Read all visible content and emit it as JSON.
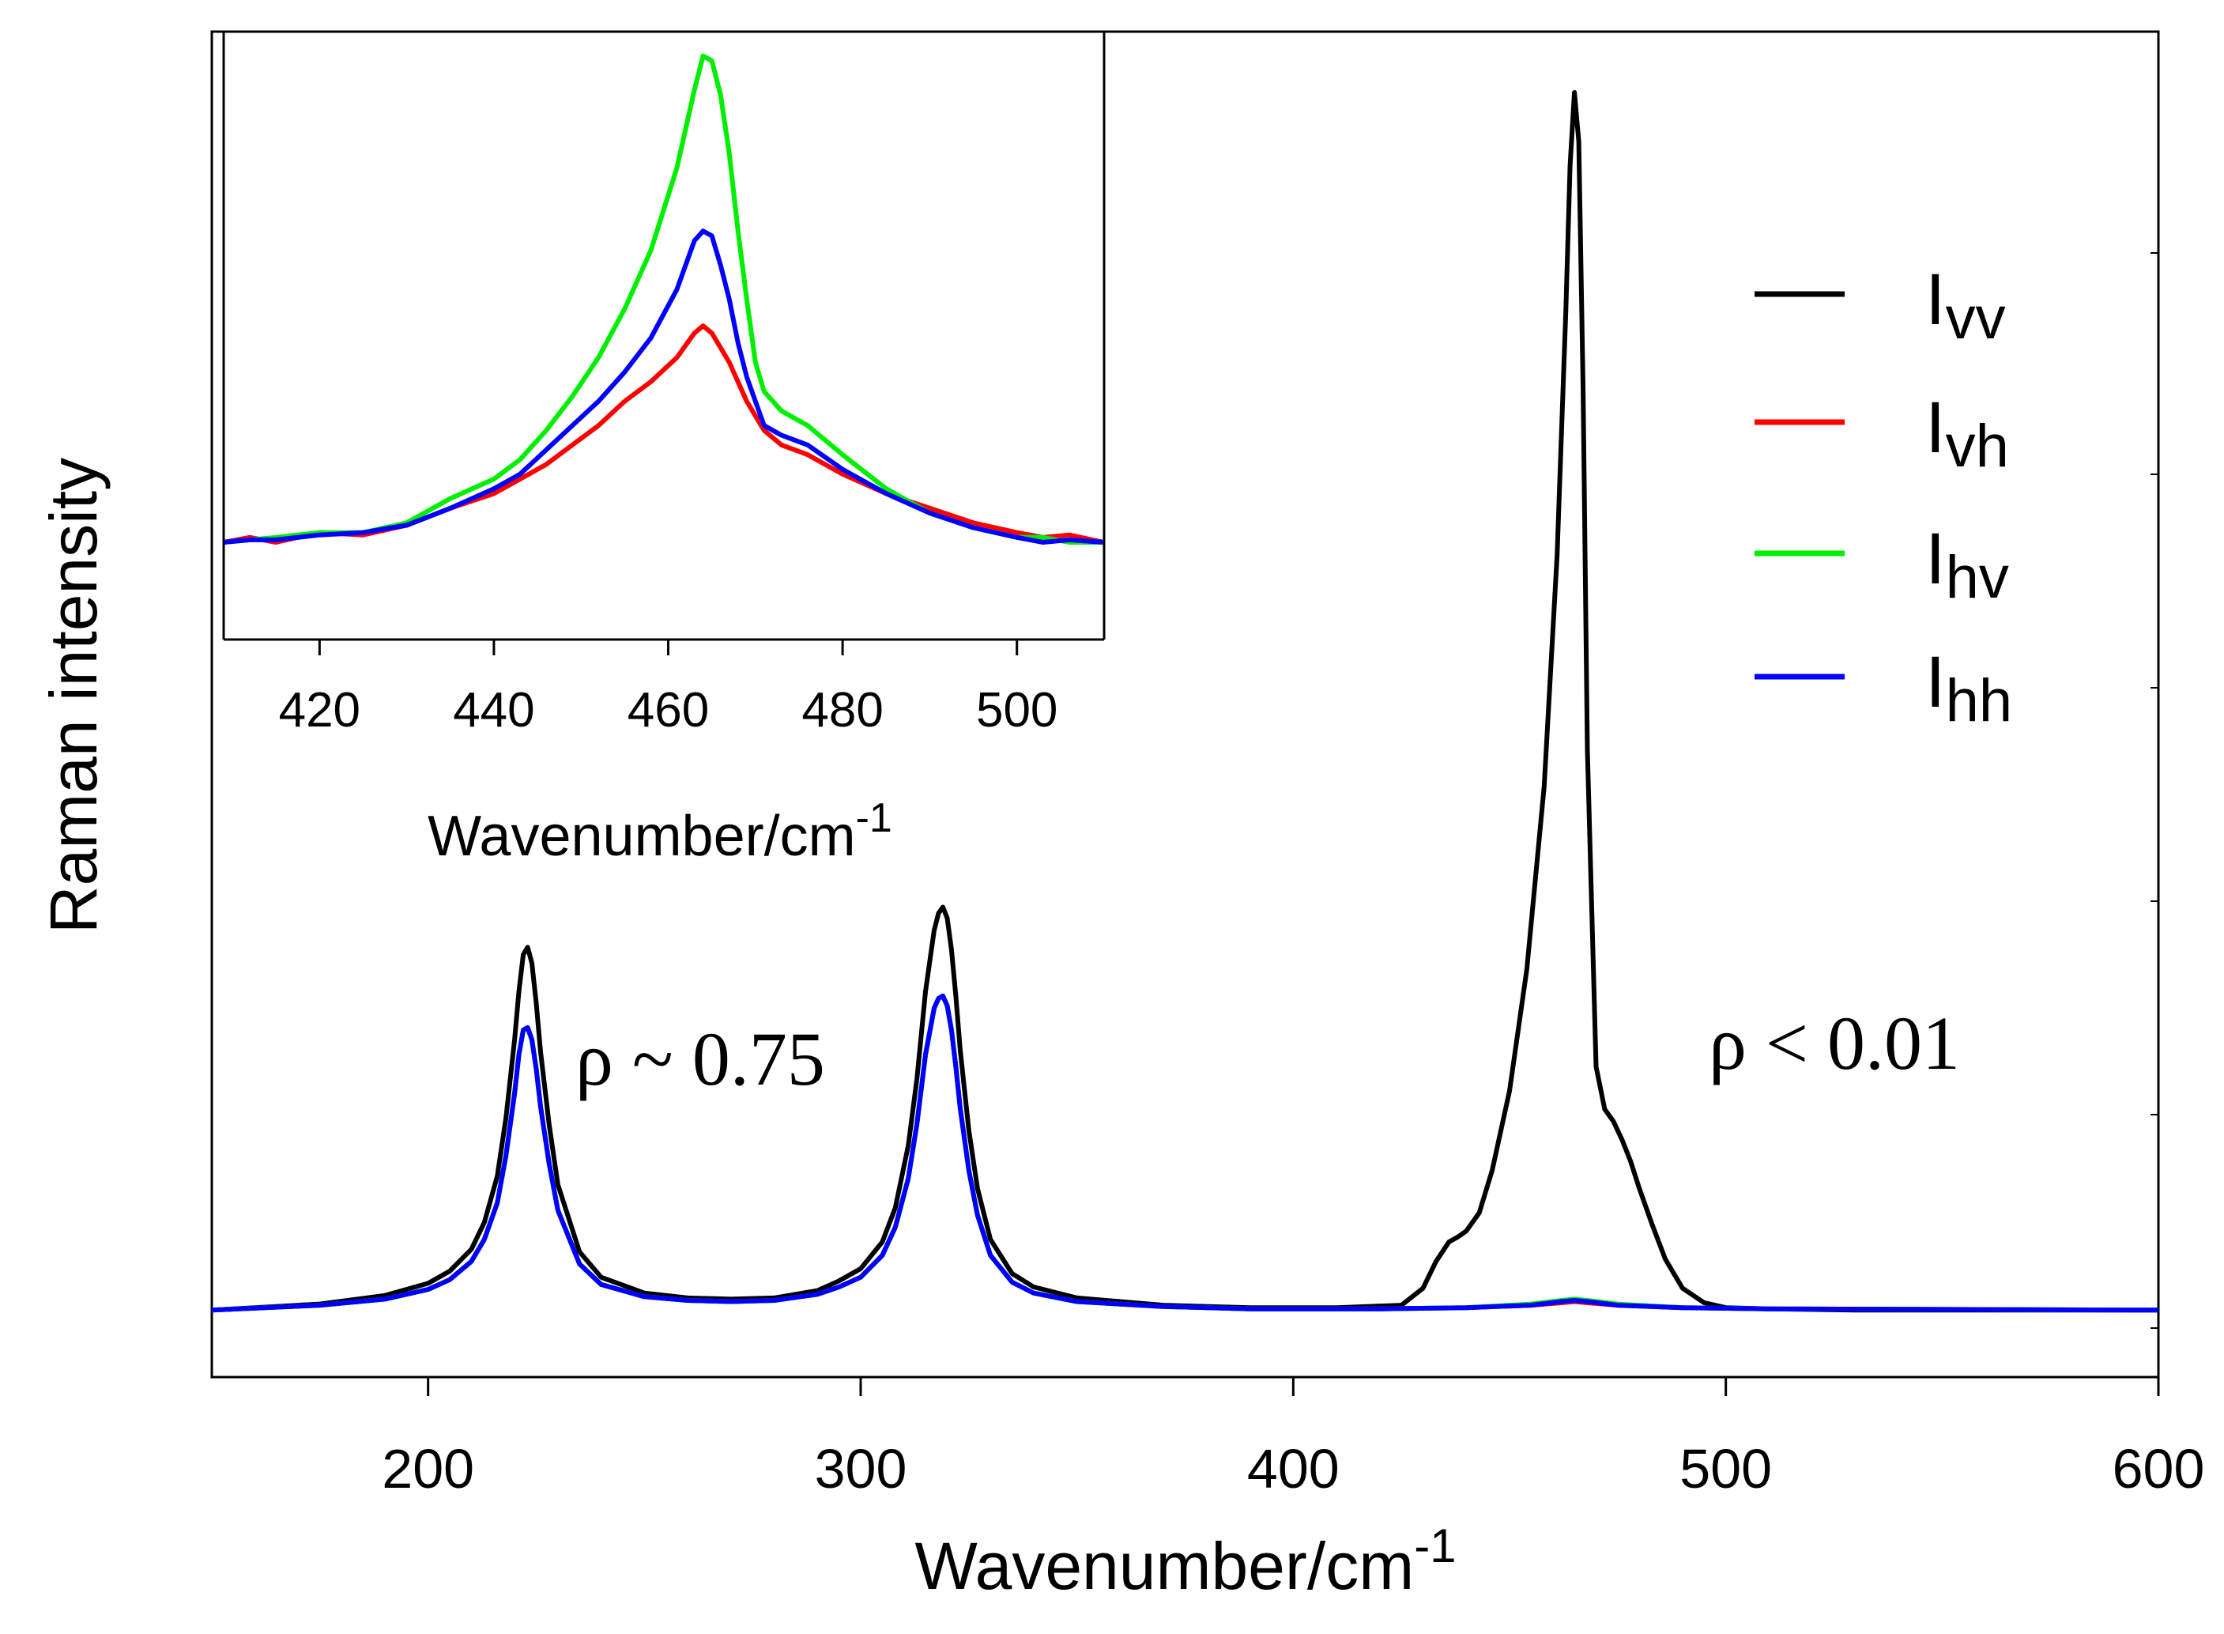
{
  "chart_data": [
    {
      "type": "line",
      "role": "main",
      "title": "",
      "xlabel": "Wavenumber/cm",
      "xlabel_superscript": "-1",
      "ylabel": "Raman intensity",
      "xlim": [
        150,
        600
      ],
      "ylim": [
        -0.055,
        1.05
      ],
      "xticks": [
        "200",
        "300",
        "400",
        "500",
        "600"
      ],
      "grid": false,
      "legend_position": "top-right",
      "series": [
        {
          "name": "vv",
          "color": "#000000",
          "x": [
            150,
            175,
            190,
            200,
            205,
            210,
            213,
            216,
            218,
            220,
            221,
            222,
            223,
            224,
            225,
            226,
            228,
            230,
            235,
            240,
            250,
            260,
            270,
            280,
            290,
            295,
            300,
            305,
            308,
            311,
            313,
            315,
            317,
            318,
            319,
            320,
            321,
            322,
            323,
            325,
            327,
            330,
            335,
            340,
            350,
            370,
            390,
            410,
            425,
            430,
            433,
            436,
            438,
            440,
            443,
            446,
            450,
            454,
            458,
            461,
            463,
            464,
            465,
            466,
            467,
            468,
            470,
            472,
            474,
            476,
            478,
            480,
            483,
            486,
            490,
            495,
            500,
            510,
            530,
            560,
            600
          ],
          "y": [
            0,
            0.005,
            0.012,
            0.022,
            0.032,
            0.05,
            0.072,
            0.11,
            0.158,
            0.222,
            0.262,
            0.292,
            0.298,
            0.285,
            0.252,
            0.212,
            0.152,
            0.103,
            0.048,
            0.027,
            0.014,
            0.01,
            0.009,
            0.01,
            0.016,
            0.024,
            0.034,
            0.056,
            0.084,
            0.135,
            0.19,
            0.262,
            0.312,
            0.326,
            0.331,
            0.322,
            0.296,
            0.258,
            0.214,
            0.148,
            0.1,
            0.058,
            0.03,
            0.019,
            0.01,
            0.004,
            0.002,
            0.002,
            0.004,
            0.018,
            0.04,
            0.056,
            0.06,
            0.065,
            0.08,
            0.115,
            0.18,
            0.28,
            0.43,
            0.62,
            0.82,
            0.94,
            1.0,
            0.96,
            0.76,
            0.46,
            0.2,
            0.165,
            0.155,
            0.14,
            0.122,
            0.1,
            0.07,
            0.042,
            0.018,
            0.006,
            0.002,
            0.001,
            0,
            0,
            0
          ]
        },
        {
          "name": "vh",
          "color": "#ff0000",
          "x": [
            150,
            175,
            190,
            200,
            205,
            210,
            213,
            216,
            218,
            220,
            221,
            222,
            223,
            224,
            225,
            226,
            228,
            230,
            235,
            240,
            250,
            260,
            270,
            280,
            290,
            295,
            300,
            305,
            308,
            311,
            313,
            315,
            317,
            318,
            319,
            320,
            321,
            322,
            323,
            325,
            327,
            330,
            335,
            340,
            350,
            370,
            390,
            420,
            440,
            455,
            462,
            465,
            468,
            475,
            490,
            510,
            600
          ],
          "y": [
            0,
            0.004,
            0.009,
            0.017,
            0.025,
            0.04,
            0.058,
            0.088,
            0.127,
            0.178,
            0.21,
            0.23,
            0.232,
            0.222,
            0.198,
            0.167,
            0.12,
            0.082,
            0.038,
            0.021,
            0.011,
            0.008,
            0.007,
            0.008,
            0.013,
            0.019,
            0.027,
            0.045,
            0.068,
            0.108,
            0.153,
            0.21,
            0.248,
            0.256,
            0.258,
            0.25,
            0.23,
            0.2,
            0.166,
            0.115,
            0.078,
            0.045,
            0.023,
            0.014,
            0.007,
            0.003,
            0.001,
            0.001,
            0.002,
            0.004,
            0.006,
            0.007,
            0.006,
            0.004,
            0.002,
            0.001,
            0
          ]
        },
        {
          "name": "hv",
          "color": "#00ee00",
          "x": [
            150,
            175,
            190,
            200,
            205,
            210,
            213,
            216,
            218,
            220,
            221,
            222,
            223,
            224,
            225,
            226,
            228,
            230,
            235,
            240,
            250,
            260,
            270,
            280,
            290,
            295,
            300,
            305,
            308,
            311,
            313,
            315,
            317,
            318,
            319,
            320,
            321,
            322,
            323,
            325,
            327,
            330,
            335,
            340,
            350,
            370,
            390,
            420,
            440,
            455,
            462,
            465,
            468,
            475,
            490,
            510,
            600
          ],
          "y": [
            0,
            0.004,
            0.009,
            0.017,
            0.025,
            0.04,
            0.058,
            0.088,
            0.127,
            0.178,
            0.21,
            0.23,
            0.232,
            0.222,
            0.198,
            0.167,
            0.12,
            0.082,
            0.038,
            0.021,
            0.011,
            0.008,
            0.007,
            0.008,
            0.013,
            0.019,
            0.027,
            0.045,
            0.068,
            0.108,
            0.153,
            0.21,
            0.248,
            0.256,
            0.258,
            0.25,
            0.23,
            0.2,
            0.166,
            0.115,
            0.078,
            0.045,
            0.023,
            0.014,
            0.007,
            0.003,
            0.001,
            0.001,
            0.002,
            0.005,
            0.008,
            0.009,
            0.008,
            0.005,
            0.002,
            0.001,
            0
          ]
        },
        {
          "name": "hh",
          "color": "#0000ff",
          "x": [
            150,
            175,
            190,
            200,
            205,
            210,
            213,
            216,
            218,
            220,
            221,
            222,
            223,
            224,
            225,
            226,
            228,
            230,
            235,
            240,
            250,
            260,
            270,
            280,
            290,
            295,
            300,
            305,
            308,
            311,
            313,
            315,
            317,
            318,
            319,
            320,
            321,
            322,
            323,
            325,
            327,
            330,
            335,
            340,
            350,
            370,
            390,
            420,
            440,
            455,
            462,
            465,
            468,
            475,
            490,
            510,
            600
          ],
          "y": [
            0,
            0.004,
            0.009,
            0.017,
            0.025,
            0.04,
            0.058,
            0.088,
            0.127,
            0.178,
            0.21,
            0.23,
            0.232,
            0.222,
            0.198,
            0.167,
            0.12,
            0.082,
            0.038,
            0.021,
            0.011,
            0.008,
            0.007,
            0.008,
            0.013,
            0.019,
            0.027,
            0.045,
            0.068,
            0.108,
            0.153,
            0.21,
            0.248,
            0.256,
            0.258,
            0.25,
            0.23,
            0.2,
            0.166,
            0.115,
            0.078,
            0.045,
            0.023,
            0.014,
            0.007,
            0.003,
            0.001,
            0.001,
            0.002,
            0.004,
            0.007,
            0.008,
            0.007,
            0.004,
            0.002,
            0.001,
            0
          ]
        }
      ],
      "annotations": [
        {
          "text": "ρ ~ 0.75",
          "x": 290,
          "y": 0.21
        },
        {
          "text": "ρ < 0.01",
          "x": 528,
          "y": 0.22
        }
      ]
    },
    {
      "type": "line",
      "role": "inset",
      "title": "",
      "xlabel": "Wavenumber/cm",
      "xlabel_superscript": "-1",
      "ylabel": "",
      "xlim": [
        409,
        510
      ],
      "ylim": [
        -0.2,
        1.05
      ],
      "xticks": [
        "420",
        "440",
        "460",
        "480",
        "500"
      ],
      "grid": false,
      "series": [
        {
          "name": "vh",
          "color": "#ff0000",
          "x": [
            409,
            412,
            415,
            420,
            425,
            430,
            435,
            440,
            443,
            446,
            449,
            452,
            455,
            458,
            461,
            463,
            464,
            465,
            467,
            469,
            471,
            473,
            476,
            480,
            485,
            490,
            495,
            500,
            503,
            506,
            510
          ],
          "y": [
            0.0,
            0.01,
            0.0,
            0.02,
            0.015,
            0.035,
            0.07,
            0.1,
            0.13,
            0.16,
            0.2,
            0.24,
            0.29,
            0.33,
            0.38,
            0.43,
            0.445,
            0.43,
            0.37,
            0.29,
            0.23,
            0.2,
            0.18,
            0.14,
            0.1,
            0.07,
            0.04,
            0.02,
            0.01,
            0.015,
            0.0
          ]
        },
        {
          "name": "hv",
          "color": "#00ee00",
          "x": [
            409,
            412,
            415,
            420,
            425,
            430,
            435,
            440,
            443,
            446,
            449,
            452,
            455,
            458,
            461,
            463,
            464,
            465,
            466,
            467,
            468,
            469,
            470,
            471,
            473,
            476,
            480,
            485,
            490,
            495,
            500,
            503,
            506,
            510
          ],
          "y": [
            0.0,
            0.005,
            0.01,
            0.02,
            0.02,
            0.04,
            0.09,
            0.13,
            0.17,
            0.23,
            0.3,
            0.38,
            0.48,
            0.6,
            0.77,
            0.93,
            1.0,
            0.99,
            0.92,
            0.8,
            0.64,
            0.5,
            0.37,
            0.31,
            0.27,
            0.24,
            0.18,
            0.11,
            0.06,
            0.03,
            0.01,
            0.01,
            0.0,
            0.0
          ]
        },
        {
          "name": "hh",
          "color": "#0000ff",
          "x": [
            409,
            412,
            415,
            420,
            425,
            430,
            435,
            440,
            443,
            446,
            449,
            452,
            455,
            458,
            461,
            463,
            464,
            465,
            466,
            467,
            468,
            469,
            470,
            471,
            473,
            476,
            480,
            485,
            490,
            495,
            500,
            503,
            506,
            510
          ],
          "y": [
            0.0,
            0.005,
            0.005,
            0.015,
            0.02,
            0.035,
            0.07,
            0.11,
            0.14,
            0.19,
            0.24,
            0.29,
            0.35,
            0.42,
            0.52,
            0.62,
            0.64,
            0.63,
            0.57,
            0.5,
            0.41,
            0.34,
            0.29,
            0.24,
            0.22,
            0.2,
            0.15,
            0.1,
            0.06,
            0.03,
            0.01,
            0.0,
            0.005,
            0.0
          ]
        }
      ]
    }
  ],
  "legend": [
    {
      "series": "vv",
      "main": "I",
      "sub": "vv",
      "color": "#000000"
    },
    {
      "series": "vh",
      "main": "I",
      "sub": "vh",
      "color": "#ff0000"
    },
    {
      "series": "hv",
      "main": "I",
      "sub": "hv",
      "color": "#00ee00"
    },
    {
      "series": "hh",
      "main": "I",
      "sub": "hh",
      "color": "#0000ff"
    }
  ]
}
